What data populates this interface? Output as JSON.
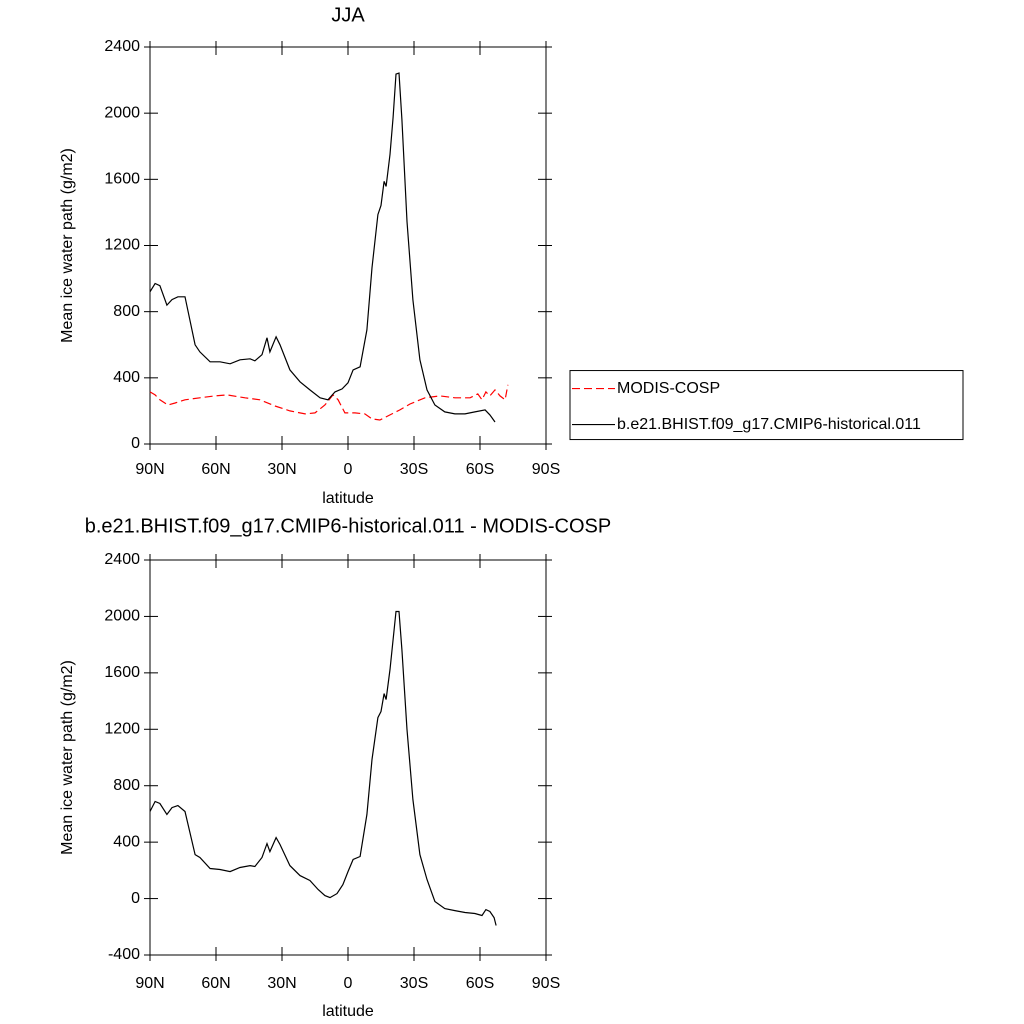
{
  "chart_data": [
    {
      "type": "line",
      "title": "JJA",
      "xlabel": "latitude",
      "ylabel": "Mean ice water path (g/m2)",
      "xlim": [
        90,
        -90
      ],
      "xticks": [
        {
          "value": 90,
          "label": "90N"
        },
        {
          "value": 60,
          "label": "60N"
        },
        {
          "value": 30,
          "label": "30N"
        },
        0,
        {
          "value": -30,
          "label": "30S"
        },
        {
          "value": -60,
          "label": "60S"
        },
        {
          "value": -90,
          "label": "90S"
        }
      ],
      "ylim": [
        0,
        2400
      ],
      "yticks": [
        0,
        400,
        800,
        1200,
        1600,
        2000,
        2400
      ],
      "legend": "right",
      "series": [
        {
          "name": "MODIS-COSP",
          "color": "#ff0000",
          "dashed": true,
          "x": [
            90,
            87.7,
            85.5,
            81.8,
            78.6,
            74.1,
            67.3,
            60.5,
            55,
            46.8,
            40,
            33.2,
            26.4,
            19.5,
            15,
            10.5,
            6.8,
            4.5,
            1.4,
            -3.2,
            -7.7,
            -10.9,
            -14.5,
            -19.1,
            -23.6,
            -28.2,
            -35,
            -41.8,
            -48.6,
            -55.5,
            -59,
            -60.9,
            -62.7,
            -64.5,
            -66.8,
            -69.1,
            -71.4,
            -72.7
          ],
          "values": [
            315,
            297,
            267,
            236,
            248,
            267,
            279,
            291,
            297,
            279,
            267,
            230,
            200,
            182,
            188,
            236,
            297,
            267,
            188,
            188,
            182,
            152,
            145,
            176,
            206,
            242,
            279,
            291,
            279,
            279,
            303,
            267,
            315,
            291,
            327,
            291,
            267,
            358
          ]
        },
        {
          "name": "b.e21.BHIST.f09_g17.CMIP6-historical.011",
          "color": "#000000",
          "dashed": false,
          "x": [
            90,
            87.7,
            85.5,
            82.3,
            80,
            77.3,
            74.1,
            69.5,
            67.3,
            62.7,
            58.2,
            53.6,
            49.1,
            44.5,
            42.3,
            39.1,
            36.8,
            35.5,
            32.7,
            30.9,
            26.4,
            21.8,
            17.3,
            12.7,
            9.1,
            5.9,
            2.7,
            0,
            -2.3,
            -5.5,
            -8.6,
            -10.9,
            -13.6,
            -15,
            -16.4,
            -17.3,
            -19.1,
            -20.5,
            -21.8,
            -23.2,
            -24.5,
            -26.8,
            -29.5,
            -32.7,
            -35.9,
            -39.5,
            -44,
            -48.6,
            -53.2,
            -57.7,
            -62.3,
            -64.5,
            -66.8
          ],
          "values": [
            920,
            970,
            957,
            840,
            873,
            890,
            890,
            600,
            557,
            497,
            497,
            485,
            509,
            515,
            503,
            540,
            642,
            557,
            648,
            600,
            448,
            376,
            327,
            279,
            267,
            315,
            333,
            370,
            448,
            467,
            690,
            1066,
            1387,
            1442,
            1588,
            1557,
            1751,
            1975,
            2236,
            2242,
            1963,
            1345,
            872,
            509,
            327,
            236,
            194,
            182,
            182,
            194,
            206,
            176,
            133
          ]
        }
      ]
    },
    {
      "type": "line",
      "title": "b.e21.BHIST.f09_g17.CMIP6-historical.011 - MODIS-COSP",
      "xlabel": "latitude",
      "ylabel": "Mean ice water path (g/m2)",
      "xlim": [
        90,
        -90
      ],
      "xticks": [
        {
          "value": 90,
          "label": "90N"
        },
        {
          "value": 60,
          "label": "60N"
        },
        {
          "value": 30,
          "label": "30N"
        },
        0,
        {
          "value": -30,
          "label": "30S"
        },
        {
          "value": -60,
          "label": "60S"
        },
        {
          "value": -90,
          "label": "90S"
        }
      ],
      "ylim": [
        -400,
        2400
      ],
      "yticks": [
        -400,
        0,
        400,
        800,
        1200,
        1600,
        2000,
        2400
      ],
      "series": [
        {
          "color": "#000000",
          "dashed": false,
          "x": [
            90,
            87.7,
            85.5,
            82.3,
            80,
            77.3,
            74.1,
            69.5,
            67.3,
            62.7,
            58.2,
            53.6,
            49.1,
            44.5,
            42.3,
            39.1,
            36.8,
            35.5,
            32.7,
            30.9,
            26.4,
            21.8,
            17.3,
            13.6,
            10.5,
            8.2,
            5,
            2.3,
            0,
            -2.3,
            -5.5,
            -8.6,
            -10.9,
            -13.6,
            -15,
            -16.4,
            -17.3,
            -19.1,
            -20.5,
            -21.8,
            -23.2,
            -24.5,
            -26.8,
            -29.5,
            -32.7,
            -35.9,
            -39.5,
            -44,
            -48.6,
            -53.2,
            -57.7,
            -60.9,
            -62.7,
            -64.5,
            -66.4,
            -67.3
          ],
          "values": [
            617,
            688,
            674,
            596,
            645,
            659,
            617,
            312,
            291,
            213,
            206,
            191,
            220,
            234,
            227,
            291,
            390,
            333,
            432,
            383,
            234,
            163,
            128,
            64,
            21,
            7,
            35,
            99,
            191,
            277,
            298,
            596,
            986,
            1283,
            1326,
            1453,
            1411,
            1624,
            1836,
            2035,
            2035,
            1765,
            1198,
            702,
            312,
            135,
            -21,
            -71,
            -85,
            -99,
            -106,
            -120,
            -78,
            -92,
            -135,
            -191
          ]
        }
      ]
    }
  ]
}
